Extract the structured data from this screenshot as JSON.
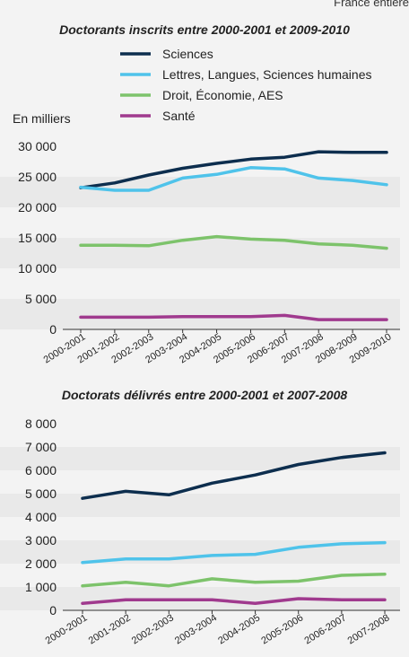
{
  "header": {
    "note": "France entière"
  },
  "colors": {
    "sciences": "#0d2e4e",
    "lettres": "#4fc3ea",
    "droit": "#7dc36b",
    "sante": "#a03a8e",
    "band": "#e9e9e9",
    "panel": "#f3f3f3"
  },
  "chart_data": [
    {
      "type": "line",
      "title": "Doctorants inscrits entre 2000-2001 et 2009-2010",
      "ylabel": "En milliers",
      "ylim": [
        0,
        30000
      ],
      "yticks": [
        0,
        5000,
        10000,
        15000,
        20000,
        25000,
        30000
      ],
      "ytick_labels": [
        "0",
        "5 000",
        "10 000",
        "15 000",
        "20 000",
        "25 000",
        "30 000"
      ],
      "categories": [
        "2000-2001",
        "2001-2002",
        "2002-2003",
        "2003-2004",
        "2004-2005",
        "2005-2006",
        "2006-2007",
        "2007-2008",
        "2008-2009",
        "2009-2010"
      ],
      "legend": "top-right",
      "series": [
        {
          "name": "Sciences",
          "color": "#0d2e4e",
          "values": [
            23200,
            24000,
            25300,
            26400,
            27200,
            27900,
            28200,
            29100,
            29000,
            29000
          ]
        },
        {
          "name": "Lettres, Langues, Sciences humaines",
          "color": "#4fc3ea",
          "values": [
            23300,
            22800,
            22800,
            24800,
            25400,
            26500,
            26300,
            24800,
            24400,
            23700
          ]
        },
        {
          "name": "Droit, Économie, AES",
          "color": "#7dc36b",
          "values": [
            13800,
            13800,
            13700,
            14600,
            15200,
            14800,
            14600,
            14000,
            13800,
            13300
          ]
        },
        {
          "name": "Santé",
          "color": "#a03a8e",
          "values": [
            2000,
            2000,
            2000,
            2100,
            2100,
            2100,
            2300,
            1600,
            1600,
            1600
          ]
        }
      ]
    },
    {
      "type": "line",
      "title": "Doctorats délivrés entre 2000-2001 et 2007-2008",
      "ylim": [
        0,
        8000
      ],
      "yticks": [
        0,
        1000,
        2000,
        3000,
        4000,
        5000,
        6000,
        7000,
        8000
      ],
      "ytick_labels": [
        "0",
        "1 000",
        "2 000",
        "3 000",
        "4 000",
        "5 000",
        "6 000",
        "7 000",
        "8 000"
      ],
      "categories": [
        "2000-2001",
        "2001-2002",
        "2002-2003",
        "2003-2004",
        "2004-2005",
        "2005-2006",
        "2006-2007",
        "2007-2008"
      ],
      "series": [
        {
          "color": "#0d2e4e",
          "values": [
            4800,
            5100,
            4950,
            5450,
            5800,
            6250,
            6550,
            6750
          ]
        },
        {
          "color": "#4fc3ea",
          "values": [
            2050,
            2200,
            2200,
            2350,
            2400,
            2700,
            2850,
            2900
          ]
        },
        {
          "color": "#7dc36b",
          "values": [
            1050,
            1200,
            1050,
            1350,
            1200,
            1250,
            1500,
            1550
          ]
        },
        {
          "color": "#a03a8e",
          "values": [
            300,
            450,
            450,
            450,
            300,
            500,
            450,
            450
          ]
        }
      ]
    }
  ]
}
